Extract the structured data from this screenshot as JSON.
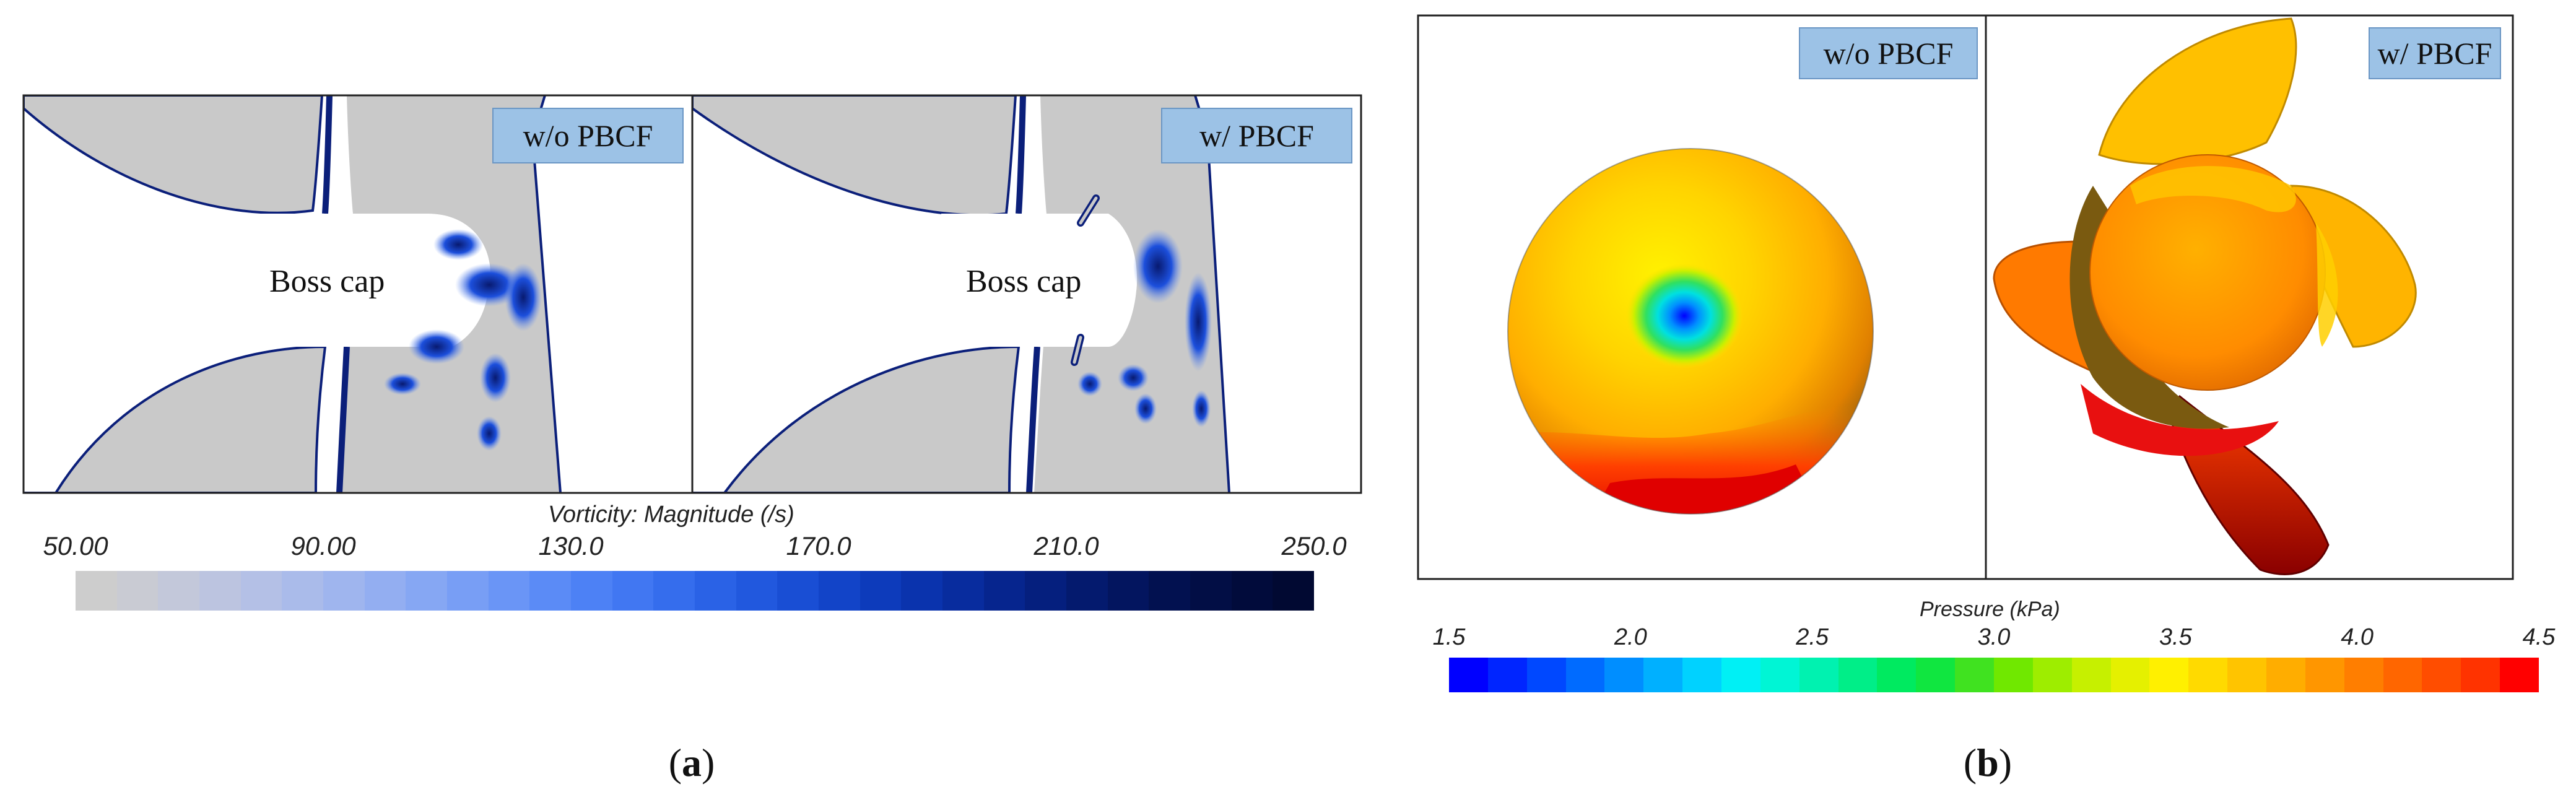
{
  "figure_a": {
    "left_label": "w/o PBCF",
    "right_label": "w/ PBCF",
    "left_center_text": "Boss cap",
    "right_center_text": "Boss cap",
    "colorbar": {
      "title": "Vorticity: Magnitude (/s)",
      "min": 50,
      "max": 250,
      "ticks": [
        "50.00",
        "90.00",
        "130.0",
        "170.0",
        "210.0",
        "250.0"
      ],
      "tick_values": [
        50,
        90,
        130,
        170,
        210,
        250
      ],
      "colors": [
        "#cdcdcd",
        "#c9cbd3",
        "#c3c8da",
        "#bcc4e0",
        "#b4c0e6",
        "#aabbea",
        "#9fb5ee",
        "#93aef1",
        "#86a7f3",
        "#789ef5",
        "#6a95f6",
        "#5b8bf6",
        "#4d81f5",
        "#4177f2",
        "#356ded",
        "#2a62e6",
        "#2158de",
        "#194ed4",
        "#1244c8",
        "#0d3bbb",
        "#0a33ad",
        "#082c9e",
        "#06258e",
        "#051f7e",
        "#041a6e",
        "#03155f",
        "#021150",
        "#020e45",
        "#010b3b",
        "#010932"
      ]
    },
    "caption_letter": "a"
  },
  "figure_b": {
    "left_label": "w/o PBCF",
    "right_label": "w/ PBCF",
    "colorbar": {
      "title": "Pressure (kPa)",
      "min": 1.5,
      "max": 4.5,
      "ticks": [
        "1.5",
        "2.0",
        "2.5",
        "3.0",
        "3.5",
        "4.0",
        "4.5"
      ],
      "tick_values": [
        1.5,
        2.0,
        2.5,
        3.0,
        3.5,
        4.0,
        4.5
      ],
      "colors": [
        "#0000ff",
        "#0025ff",
        "#0048ff",
        "#006bff",
        "#008eff",
        "#00b0ff",
        "#00d2ff",
        "#00f0f5",
        "#00f5d5",
        "#00f2b0",
        "#00ee88",
        "#00ea60",
        "#10e640",
        "#40e220",
        "#70e800",
        "#9eed00",
        "#c6f000",
        "#e5f000",
        "#fff000",
        "#ffda00",
        "#ffc400",
        "#ffad00",
        "#ff9600",
        "#ff7e00",
        "#ff6600",
        "#ff4d00",
        "#ff3300",
        "#ff0000"
      ]
    },
    "caption_letter": "b"
  },
  "colors": {
    "frame": "#222222",
    "blade_gray": "#c9c9c9",
    "edge_blue": "#0b1f7a",
    "label_bg": "#9cc2e6"
  }
}
